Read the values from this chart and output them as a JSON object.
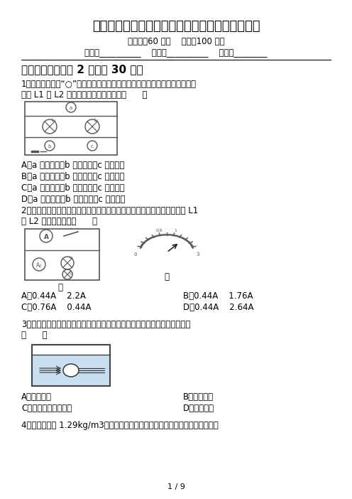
{
  "title": "最新人教版九年级物理下册期末考试题及完整答案",
  "subtitle": "（时间：60 分钟    分数：100 分）",
  "header_line": "班级：__________    姓名：__________    分数：________",
  "section1": "一、选择题（每题 2 分，共 30 分）",
  "q1_text1": "1、如图所示，在“○”处可以连接电流表或电压表测量电路中的电流、电压，",
  "q1_text2": "为使 L1 与 L2 串联，以下做法正确的是（      ）",
  "q1_a": "A．a 为电流表，b 为电压表，c 为电流表",
  "q1_b": "B．a 为电压表，b 为电压表，c 为电流表",
  "q1_c": "C．a 为电流表，b 为电流表，c 为电压表",
  "q1_d": "D．a 为电流表，b 为电流表，c 为电流表",
  "q2_text1": "2、如图甲所示，开关闭合后，两个电流表指针偏转均为乙图所示，则通过 L1",
  "q2_text2": "和 L2 的电流分别为（      ）",
  "q2_label1": "甲",
  "q2_label2": "乙",
  "q2_a": "A．0.44A    2.2A",
  "q2_b": "B．0.44A    1.76A",
  "q2_c": "C．0.76A    0.44A",
  "q2_d": "D．0.44A    2.64A",
  "q3_text1": "3、如图所示容器水中有一个空气泡，则其对水平射入其中的光线有何作用：",
  "q3_text2": "（      ）",
  "q3_a": "A．会聚作用",
  "q3_b": "B．发散作用",
  "q3_c": "C．既不会聚也不发散",
  "q3_d": "D．无法判断",
  "q4_text1": "4、空气密度为 1.29kg/m3，以下数据中最接近于一个教室里全部空气质量的是",
  "page_footer": "1 / 9",
  "bg_color": "#ffffff",
  "text_color": "#000000",
  "title_fontsize": 13,
  "body_fontsize": 9,
  "section_fontsize": 11
}
